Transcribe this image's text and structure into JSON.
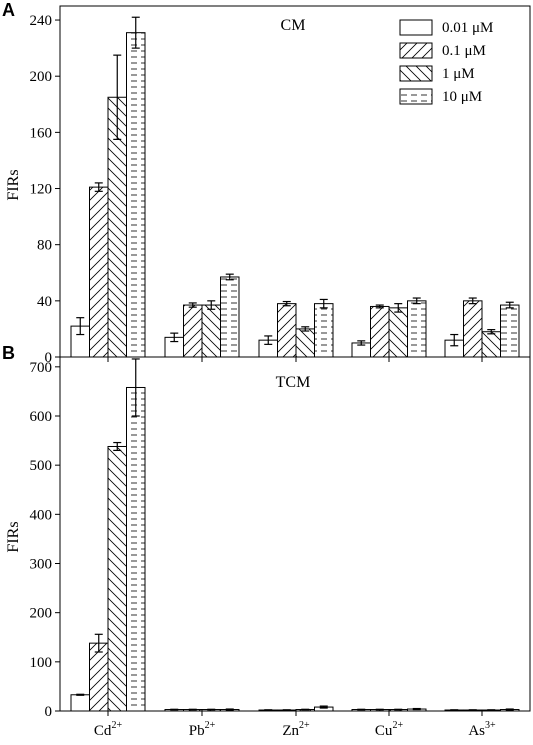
{
  "figure": {
    "panel_letters": [
      "A",
      "B"
    ]
  },
  "chart_data": [
    {
      "type": "bar",
      "panel": "A",
      "title": "CM",
      "xlabel": "",
      "ylabel": "FIRs",
      "ylim": [
        0,
        250
      ],
      "yticks": [
        0,
        40,
        80,
        120,
        160,
        200,
        240
      ],
      "ytick_labels": [
        "0",
        "40",
        "80",
        "120",
        "160",
        "200",
        "240"
      ],
      "categories": [
        {
          "base": "Cd",
          "sup": "2+"
        },
        {
          "base": "Pb",
          "sup": "2+"
        },
        {
          "base": "Zn",
          "sup": "2+"
        },
        {
          "base": "Cu",
          "sup": "2+"
        },
        {
          "base": "As",
          "sup": "3+"
        }
      ],
      "legend_position": "top-right",
      "series": [
        {
          "name": "0.01 μM",
          "pattern": "none",
          "values": [
            22,
            14,
            12,
            10,
            12
          ],
          "errors": [
            6,
            3,
            3,
            1.5,
            4
          ]
        },
        {
          "name": "0.1 μM",
          "pattern": "diagonal-up",
          "values": [
            121,
            37,
            38,
            36,
            40
          ],
          "errors": [
            3,
            1.5,
            1.5,
            1,
            2
          ]
        },
        {
          "name": "1 μM",
          "pattern": "diagonal-down",
          "values": [
            185,
            37,
            20,
            35,
            18
          ],
          "errors": [
            30,
            3,
            1.5,
            3,
            1.5
          ]
        },
        {
          "name": "10 μM",
          "pattern": "dashed-horizontal",
          "values": [
            231,
            57,
            38,
            40,
            37
          ],
          "errors": [
            11,
            2,
            3,
            2,
            2
          ]
        }
      ]
    },
    {
      "type": "bar",
      "panel": "B",
      "title": "TCM",
      "xlabel": "",
      "ylabel": "FIRs",
      "ylim": [
        0,
        720
      ],
      "yticks": [
        0,
        100,
        200,
        300,
        400,
        500,
        600,
        700
      ],
      "ytick_labels": [
        "0",
        "100",
        "200",
        "300",
        "400",
        "500",
        "600",
        "700"
      ],
      "categories": [
        {
          "base": "Cd",
          "sup": "2+"
        },
        {
          "base": "Pb",
          "sup": "2+"
        },
        {
          "base": "Zn",
          "sup": "2+"
        },
        {
          "base": "Cu",
          "sup": "2+"
        },
        {
          "base": "As",
          "sup": "3+"
        }
      ],
      "series": [
        {
          "name": "0.01 μM",
          "pattern": "none",
          "values": [
            33,
            3,
            2,
            3,
            2
          ],
          "errors": [
            1,
            0.5,
            0.5,
            0.5,
            0.5
          ]
        },
        {
          "name": "0.1 μM",
          "pattern": "diagonal-up",
          "values": [
            138,
            3,
            2,
            3,
            2
          ],
          "errors": [
            18,
            0.5,
            0.5,
            0.5,
            0.5
          ]
        },
        {
          "name": "1 μM",
          "pattern": "diagonal-down",
          "values": [
            538,
            3,
            3,
            3,
            2
          ],
          "errors": [
            8,
            0.5,
            0.5,
            0.5,
            0.5
          ]
        },
        {
          "name": "10 μM",
          "pattern": "dashed-horizontal",
          "values": [
            658,
            3,
            8,
            4,
            3
          ],
          "errors": [
            58,
            1,
            2,
            1,
            1
          ]
        }
      ]
    }
  ]
}
